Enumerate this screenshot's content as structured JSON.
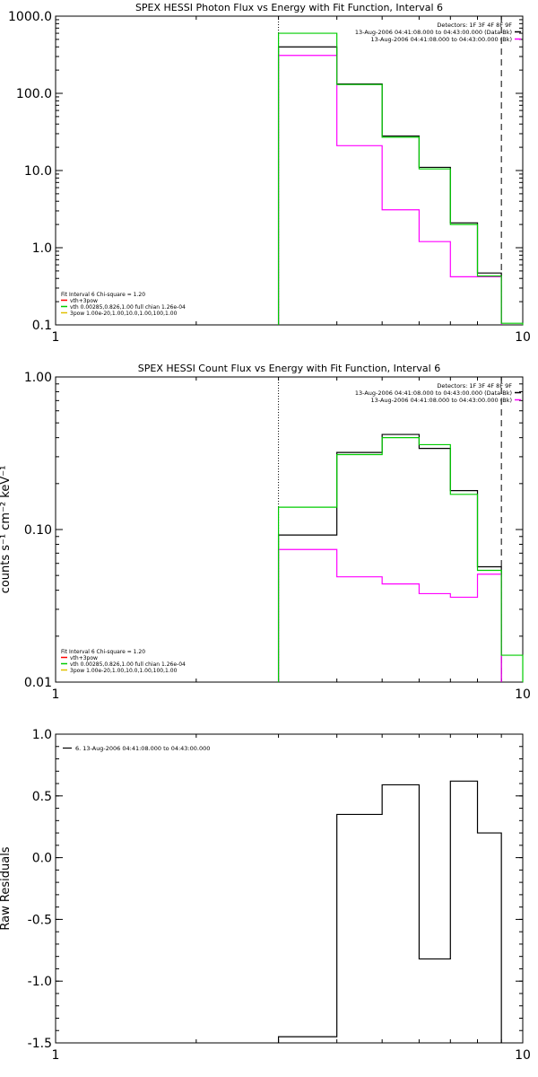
{
  "chart_data": [
    {
      "type": "line",
      "title": "SPEX HESSI Photon Flux vs Energy with Fit Function, Interval 6",
      "xlabel": "",
      "ylabel": "",
      "xscale": "log",
      "yscale": "log",
      "xlim": [
        1,
        10
      ],
      "ylim": [
        0.1,
        1000
      ],
      "xticks": [
        {
          "v": 1,
          "label": "1"
        },
        {
          "v": 10,
          "label": "10"
        }
      ],
      "yticks": [
        {
          "v": 1000,
          "label": "1000.0"
        },
        {
          "v": 100,
          "label": "100.0"
        },
        {
          "v": 10,
          "label": "10.0"
        },
        {
          "v": 1,
          "label": "1.0"
        },
        {
          "v": 0.1,
          "label": "0.1"
        }
      ],
      "vlines": [
        {
          "x": 3,
          "style": "dotted"
        },
        {
          "x": 9,
          "style": "dashed"
        }
      ],
      "series": [
        {
          "name": "13-Aug-2006 04:41:08.000 to 04:43:00.000 (Data-Bk)",
          "color": "#000000",
          "edges": [
            3,
            4,
            5,
            6,
            7,
            8,
            9
          ],
          "values": [
            400,
            132,
            28,
            11,
            2.1,
            0.47
          ]
        },
        {
          "name": "13-Aug-2006 04:41:08.000 to 04:43:00.000 (Bk)",
          "color": "#ff00ff",
          "edges": [
            3,
            4,
            5,
            6,
            7,
            8,
            9
          ],
          "values": [
            310,
            21,
            3.1,
            1.2,
            0.42,
            0.42
          ]
        },
        {
          "name": "vth+3pow",
          "color": "#00cc00",
          "edges": [
            3,
            4,
            5,
            6,
            7,
            8,
            9,
            10
          ],
          "values": [
            600,
            130,
            27,
            10.5,
            2.0,
            0.43,
            0.105
          ]
        }
      ],
      "legend_top": {
        "lines": [
          {
            "text": "Detectors: 1F 3F 4F 8F 9F",
            "color": null
          },
          {
            "text": "13-Aug-2006 04:41:08.000 to 04:43:00.000 (Data-Bk)",
            "color": "#000000"
          },
          {
            "text": "13-Aug-2006 04:41:08.000 to 04:43:00.000 (Bk)",
            "color": "#ff00ff"
          }
        ]
      },
      "legend_bottom": {
        "lines": [
          {
            "text": "Fit Interval  6    Chi-square = 1.20",
            "color": null
          },
          {
            "text": "vth+3pow",
            "color": "#ff0000"
          },
          {
            "text": "vth 0.00285,0.826,1.00   full chian 1.26e-04",
            "color": "#00cc00"
          },
          {
            "text": "3pow 1.00e-20,1.00,10.0,1.00,100,1.00",
            "color": "#e0c000"
          }
        ]
      }
    },
    {
      "type": "line",
      "title": "SPEX HESSI Count Flux vs Energy with Fit Function, Interval 6",
      "xlabel": "",
      "ylabel": "counts s⁻¹ cm⁻² keV⁻¹",
      "xscale": "log",
      "yscale": "log",
      "xlim": [
        1,
        10
      ],
      "ylim": [
        0.01,
        1.0
      ],
      "xticks": [
        {
          "v": 1,
          "label": "1"
        },
        {
          "v": 10,
          "label": "10"
        }
      ],
      "yticks": [
        {
          "v": 1.0,
          "label": "1.00"
        },
        {
          "v": 0.1,
          "label": "0.10"
        },
        {
          "v": 0.01,
          "label": "0.01"
        }
      ],
      "vlines": [
        {
          "x": 3,
          "style": "dotted"
        },
        {
          "x": 9,
          "style": "dashed"
        }
      ],
      "series": [
        {
          "name": "13-Aug-2006 04:41:08.000 to 04:43:00.000 (Data-Bk)",
          "color": "#000000",
          "edges": [
            3,
            4,
            5,
            6,
            7,
            8,
            9
          ],
          "values": [
            0.092,
            0.32,
            0.42,
            0.34,
            0.18,
            0.057
          ]
        },
        {
          "name": "13-Aug-2006 04:41:08.000 to 04:43:00.000 (Bk)",
          "color": "#ff00ff",
          "edges": [
            3,
            4,
            5,
            6,
            7,
            8,
            9
          ],
          "values": [
            0.074,
            0.049,
            0.044,
            0.038,
            0.036,
            0.051
          ]
        },
        {
          "name": "vth+3pow",
          "color": "#00cc00",
          "edges": [
            3,
            4,
            5,
            6,
            7,
            8,
            9,
            10
          ],
          "values": [
            0.14,
            0.31,
            0.4,
            0.36,
            0.17,
            0.054,
            0.015
          ]
        }
      ],
      "legend_top": {
        "lines": [
          {
            "text": "Detectors: 1F 3F 4F 8F 9F",
            "color": null
          },
          {
            "text": "13-Aug-2006 04:41:08.000 to 04:43:00.000 (Data-Bk)",
            "color": "#000000"
          },
          {
            "text": "13-Aug-2006 04:41:08.000 to 04:43:00.000 (Bk)",
            "color": "#ff00ff"
          }
        ]
      },
      "legend_bottom": {
        "lines": [
          {
            "text": "Fit Interval  6    Chi-square = 1.20",
            "color": null
          },
          {
            "text": "vth+3pow",
            "color": "#ff0000"
          },
          {
            "text": "vth 0.00285,0.826,1.00   full chian 1.26e-04",
            "color": "#00cc00"
          },
          {
            "text": "3pow 1.00e-20,1.00,10.0,1.00,100,1.00",
            "color": "#e0c000"
          }
        ]
      }
    },
    {
      "type": "line",
      "title": "",
      "xlabel": "",
      "ylabel": "Raw Residuals",
      "xscale": "log",
      "yscale": "linear",
      "xlim": [
        1,
        10
      ],
      "ylim": [
        -1.5,
        1.0
      ],
      "xticks": [
        {
          "v": 1,
          "label": "1"
        },
        {
          "v": 10,
          "label": "10"
        }
      ],
      "yticks": [
        {
          "v": 1.0,
          "label": "1.0"
        },
        {
          "v": 0.5,
          "label": "0.5"
        },
        {
          "v": 0.0,
          "label": "0.0"
        },
        {
          "v": -0.5,
          "label": "-0.5"
        },
        {
          "v": -1.0,
          "label": "-1.0"
        },
        {
          "v": -1.5,
          "label": "-1.5"
        }
      ],
      "vlines": [],
      "series": [
        {
          "name": "6. 13-Aug-2006 04:41:08.000 to 04:43:00.000",
          "color": "#000000",
          "edges": [
            3,
            4,
            5,
            6,
            7,
            8,
            9
          ],
          "values": [
            -1.45,
            0.35,
            0.59,
            -0.82,
            0.62,
            0.2
          ]
        }
      ],
      "legend_residual": {
        "text": "6. 13-Aug-2006 04:41:08.000 to 04:43:00.000"
      }
    }
  ]
}
